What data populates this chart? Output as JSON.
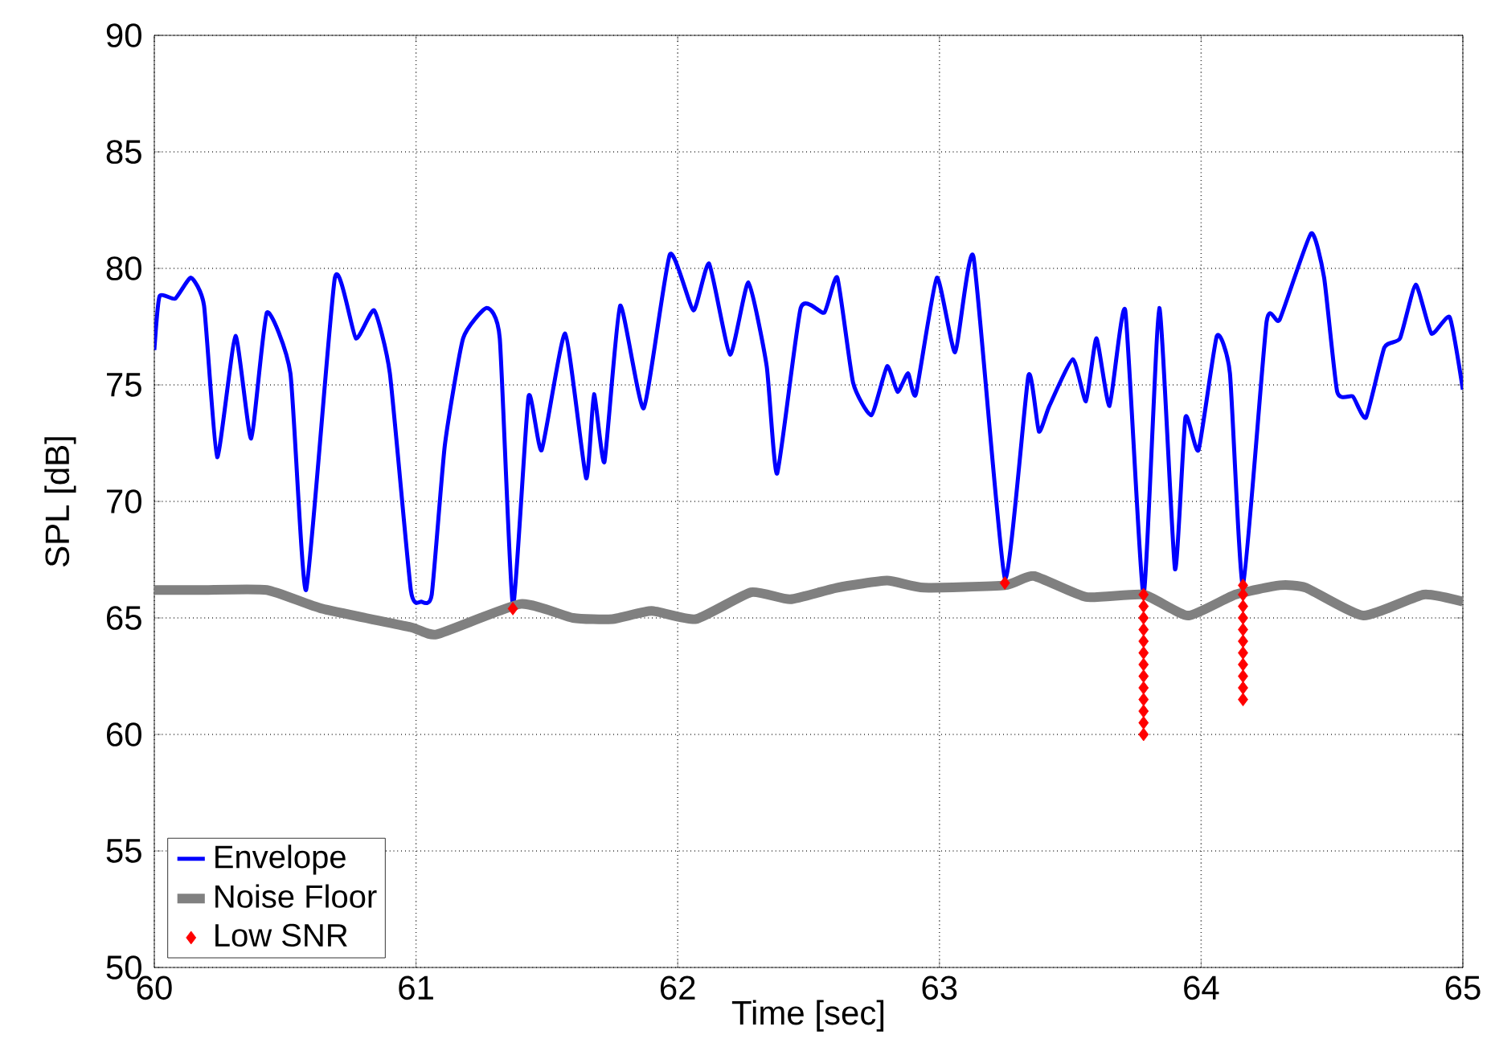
{
  "chart_data": {
    "type": "line",
    "xlabel": "Time [sec]",
    "ylabel": "SPL [dB]",
    "xlim": [
      60,
      65
    ],
    "ylim": [
      50,
      90
    ],
    "xticks": [
      60,
      61,
      62,
      63,
      64,
      65
    ],
    "yticks": [
      50,
      55,
      60,
      65,
      70,
      75,
      80,
      85,
      90
    ],
    "grid": true,
    "legend": "bottom left",
    "series": [
      {
        "name": "Envelope",
        "color": "#0000ff",
        "x": [
          60,
          60.02,
          60.08,
          60.14,
          60.19,
          60.24,
          60.31,
          60.37,
          60.43,
          60.52,
          60.58,
          60.69,
          60.77,
          60.84,
          60.9,
          60.98,
          61.02,
          61.06,
          61.11,
          61.18,
          61.27,
          61.32,
          61.37,
          61.43,
          61.48,
          61.57,
          61.65,
          61.68,
          61.72,
          61.78,
          61.87,
          61.97,
          62.06,
          62.12,
          62.2,
          62.27,
          62.34,
          62.38,
          62.47,
          62.56,
          62.61,
          62.67,
          62.74,
          62.8,
          62.84,
          62.88,
          62.91,
          62.99,
          63.06,
          63.13,
          63.25,
          63.34,
          63.38,
          63.42,
          63.51,
          63.56,
          63.6,
          63.65,
          63.71,
          63.78,
          63.84,
          63.9,
          63.94,
          63.99,
          64.06,
          64.11,
          64.16,
          64.25,
          64.3,
          64.42,
          64.47,
          64.52,
          64.58,
          64.63,
          64.7,
          64.76,
          64.82,
          64.88,
          64.95,
          65
        ],
        "values": [
          76.5,
          78.8,
          78.7,
          79.6,
          78.4,
          71.9,
          77.1,
          72.7,
          78.1,
          75.5,
          66.2,
          79.6,
          77.0,
          78.2,
          75.5,
          66.2,
          65.7,
          66.0,
          72.4,
          77.0,
          78.3,
          77.0,
          65.5,
          74.5,
          72.2,
          77.2,
          71.0,
          74.6,
          71.7,
          78.4,
          74.0,
          80.6,
          78.2,
          80.2,
          76.3,
          79.4,
          75.8,
          71.2,
          78.3,
          78.1,
          79.6,
          75.1,
          73.7,
          75.8,
          74.7,
          75.5,
          74.6,
          79.6,
          76.4,
          80.5,
          66.7,
          75.4,
          73.0,
          74.1,
          76.1,
          74.3,
          77.0,
          74.1,
          78.2,
          66.0,
          78.3,
          67.1,
          73.6,
          72.2,
          77.1,
          75.5,
          66.4,
          77.7,
          77.8,
          81.5,
          79.6,
          74.7,
          74.5,
          73.6,
          76.6,
          77.0,
          79.3,
          77.2,
          77.9,
          74.8
        ]
      },
      {
        "name": "Noise Floor",
        "color": "#808080",
        "x": [
          60,
          60.18,
          60.43,
          60.64,
          60.98,
          61.08,
          61.4,
          61.6,
          61.75,
          61.9,
          62.07,
          62.28,
          62.43,
          62.61,
          62.8,
          62.94,
          63.25,
          63.36,
          63.56,
          63.78,
          63.95,
          64.13,
          64.3,
          64.4,
          64.62,
          64.85,
          65
        ],
        "values": [
          66.2,
          66.2,
          66.2,
          65.4,
          64.6,
          64.3,
          65.6,
          65.0,
          64.95,
          65.3,
          64.95,
          66.1,
          65.8,
          66.3,
          66.6,
          66.3,
          66.4,
          66.8,
          65.9,
          66.0,
          65.1,
          66.0,
          66.4,
          66.3,
          65.1,
          66.0,
          65.7
        ]
      },
      {
        "name": "Low SNR",
        "type": "scatter",
        "marker": "diamond",
        "color": "#ff0000",
        "x": [
          61.37,
          63.25,
          63.78,
          63.78,
          63.78,
          63.78,
          63.78,
          63.78,
          63.78,
          63.78,
          63.78,
          63.78,
          63.78,
          63.78,
          63.78,
          64.16,
          64.16,
          64.16,
          64.16,
          64.16,
          64.16,
          64.16,
          64.16,
          64.16,
          64.16,
          64.16
        ],
        "values": [
          65.4,
          66.5,
          66.0,
          65.5,
          65.0,
          64.5,
          64.0,
          63.5,
          63.0,
          62.5,
          62.0,
          61.5,
          61.0,
          60.5,
          60.0,
          66.4,
          66.0,
          65.5,
          65.0,
          64.5,
          64.0,
          63.5,
          63.0,
          62.5,
          62.0,
          61.5
        ]
      }
    ]
  }
}
